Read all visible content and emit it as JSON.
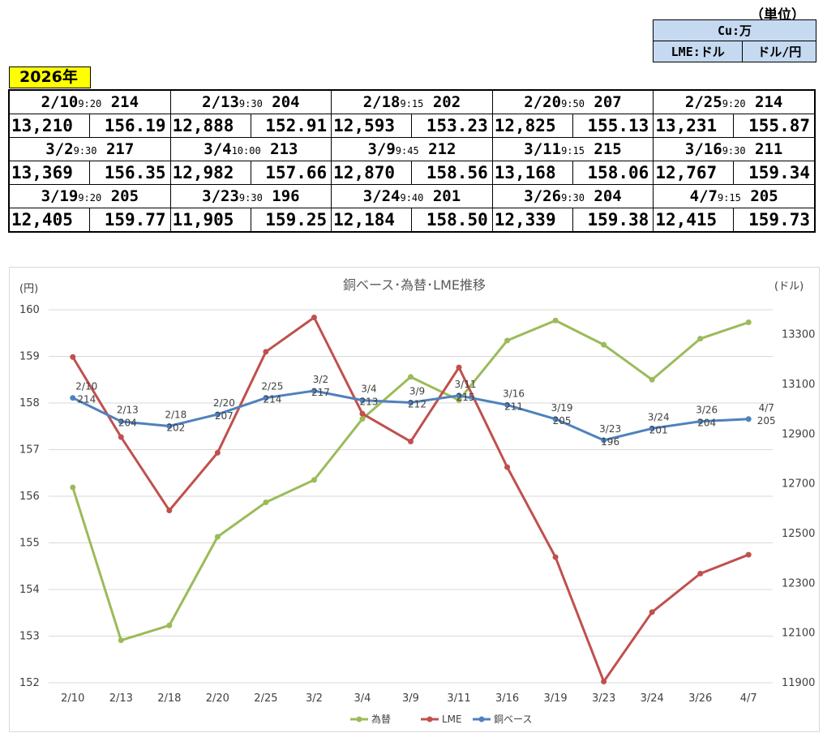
{
  "unit_table": {
    "heading": "（単位）",
    "header": "Cu:万",
    "col_lme": "LME:ドル",
    "col_fx": "ドル/円"
  },
  "year_label": "2026年",
  "price_table": [
    [
      {
        "date": "2/10",
        "time": "9:20",
        "base": "214",
        "lme": "13,210",
        "fx": "156.19"
      },
      {
        "date": "2/13",
        "time": "9:30",
        "base": "204",
        "lme": "12,888",
        "fx": "152.91"
      },
      {
        "date": "2/18",
        "time": "9:15",
        "base": "202",
        "lme": "12,593",
        "fx": "153.23"
      },
      {
        "date": "2/20",
        "time": "9:50",
        "base": "207",
        "lme": "12,825",
        "fx": "155.13"
      },
      {
        "date": "2/25",
        "time": "9:20",
        "base": "214",
        "lme": "13,231",
        "fx": "155.87"
      }
    ],
    [
      {
        "date": "3/2",
        "time": "9:30",
        "base": "217",
        "lme": "13,369",
        "fx": "156.35"
      },
      {
        "date": "3/4",
        "time": "10:00",
        "base": "213",
        "lme": "12,982",
        "fx": "157.66"
      },
      {
        "date": "3/9",
        "time": "9:45",
        "base": "212",
        "lme": "12,870",
        "fx": "158.56"
      },
      {
        "date": "3/11",
        "time": "9:15",
        "base": "215",
        "lme": "13,168",
        "fx": "158.06"
      },
      {
        "date": "3/16",
        "time": "9:30",
        "base": "211",
        "lme": "12,767",
        "fx": "159.34"
      }
    ],
    [
      {
        "date": "3/19",
        "time": "9:20",
        "base": "205",
        "lme": "12,405",
        "fx": "159.77"
      },
      {
        "date": "3/23",
        "time": "9:30",
        "base": "196",
        "lme": "11,905",
        "fx": "159.25"
      },
      {
        "date": "3/24",
        "time": "9:40",
        "base": "201",
        "lme": "12,184",
        "fx": "158.50"
      },
      {
        "date": "3/26",
        "time": "9:30",
        "base": "204",
        "lme": "12,339",
        "fx": "159.38"
      },
      {
        "date": "4/7",
        "time": "9:15",
        "base": "205",
        "lme": "12,415",
        "fx": "159.73"
      }
    ]
  ],
  "chart_data": {
    "type": "line",
    "title": "銅ベース･為替･LME推移",
    "ylabel_left": "(円)",
    "ylabel_right": "(ドル)",
    "categories": [
      "2/10",
      "2/13",
      "2/18",
      "2/20",
      "2/25",
      "3/2",
      "3/4",
      "3/9",
      "3/11",
      "3/16",
      "3/19",
      "3/23",
      "3/24",
      "3/26",
      "4/7"
    ],
    "y_left_range": [
      152,
      160
    ],
    "y_left_ticks": [
      "152",
      "153",
      "154",
      "155",
      "156",
      "157",
      "158",
      "159",
      "160"
    ],
    "y_right_range": [
      11900,
      13400
    ],
    "y_right_ticks": [
      "11900",
      "12100",
      "12300",
      "12500",
      "12700",
      "12900",
      "13100",
      "13300"
    ],
    "grid": true,
    "legend_position": "bottom",
    "series": [
      {
        "name": "為替",
        "axis": "left",
        "color": "#9bbb59",
        "values": [
          156.19,
          152.91,
          153.23,
          155.13,
          155.87,
          156.35,
          157.66,
          158.56,
          158.06,
          159.34,
          159.77,
          159.25,
          158.5,
          159.38,
          159.73
        ]
      },
      {
        "name": "LME",
        "axis": "right",
        "color": "#c0504d",
        "values": [
          13210,
          12888,
          12593,
          12825,
          13231,
          13369,
          12982,
          12870,
          13168,
          12767,
          12405,
          11905,
          12184,
          12339,
          12415
        ]
      },
      {
        "name": "銅ベース",
        "axis": "right_base",
        "color": "#4f81bd",
        "values": [
          214,
          204,
          202,
          207,
          214,
          217,
          213,
          212,
          215,
          211,
          205,
          196,
          201,
          204,
          205
        ]
      }
    ]
  }
}
